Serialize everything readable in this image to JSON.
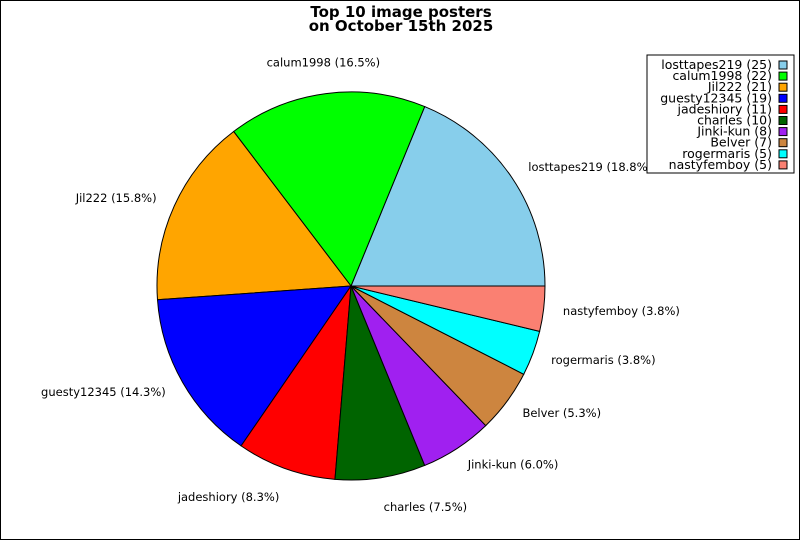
{
  "chart_data": {
    "type": "pie",
    "title": [
      "Top 10 image posters",
      "on October 15th 2025"
    ],
    "legend_placement": "top-right",
    "slices": [
      {
        "name": "losttapes219",
        "value": 25,
        "percent": "18.8%",
        "color": "#87ceeb"
      },
      {
        "name": "calum1998",
        "value": 22,
        "percent": "16.5%",
        "color": "#00ff00"
      },
      {
        "name": "Jil222",
        "value": 21,
        "percent": "15.8%",
        "color": "#ffa500"
      },
      {
        "name": "guesty12345",
        "value": 19,
        "percent": "14.3%",
        "color": "#0000ff"
      },
      {
        "name": "jadeshiory",
        "value": 11,
        "percent": "8.3%",
        "color": "#ff0000"
      },
      {
        "name": "charles",
        "value": 10,
        "percent": "7.5%",
        "color": "#006400"
      },
      {
        "name": "Jinki-kun",
        "value": 8,
        "percent": "6.0%",
        "color": "#a020f0"
      },
      {
        "name": "Belver",
        "value": 7,
        "percent": "5.3%",
        "color": "#cd853f"
      },
      {
        "name": "rogermaris",
        "value": 5,
        "percent": "3.8%",
        "color": "#00ffff"
      },
      {
        "name": "nastyfemboy",
        "value": 5,
        "percent": "3.8%",
        "color": "#fa8072"
      }
    ]
  }
}
